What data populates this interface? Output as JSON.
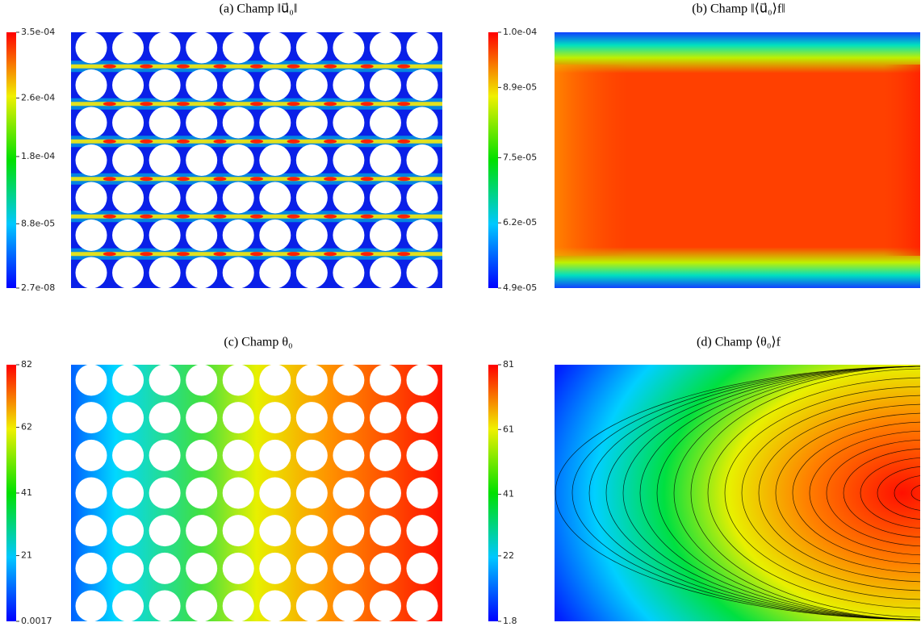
{
  "chart_data": [
    {
      "type": "heatmap",
      "title": "(a) Champ ‖u⃗₀‖",
      "clim": [
        2.7e-08,
        0.00035
      ],
      "cticks": [
        {
          "value": 2.7e-08,
          "label": "2.7e-08"
        },
        {
          "value": 8.8e-05,
          "label": "8.8e-05"
        },
        {
          "value": 0.00018,
          "label": "1.8e-04"
        },
        {
          "value": 0.00026,
          "label": "2.6e-04"
        },
        {
          "value": 0.00035,
          "label": "3.5e-04"
        }
      ]
    },
    {
      "type": "heatmap",
      "title": "(b) Champ ‖⟨u⃗₀⟩f‖",
      "clim": [
        4.9e-05,
        0.0001
      ],
      "cticks": [
        {
          "value": 4.9e-05,
          "label": "4.9e-05"
        },
        {
          "value": 6.2e-05,
          "label": "6.2e-05"
        },
        {
          "value": 7.5e-05,
          "label": "7.5e-05"
        },
        {
          "value": 8.9e-05,
          "label": "8.9e-05"
        },
        {
          "value": 0.0001,
          "label": "1.0e-04"
        }
      ]
    },
    {
      "type": "heatmap",
      "title": "(c) Champ θ₀",
      "clim": [
        0.0017,
        82
      ],
      "cticks": [
        0.0017,
        21,
        41,
        62,
        82
      ]
    },
    {
      "type": "heatmap",
      "title": "(d) Champ ⟨θ₀⟩f",
      "clim": [
        1.8,
        81
      ],
      "cticks": [
        1.8,
        22,
        41,
        61,
        81
      ]
    }
  ]
}
